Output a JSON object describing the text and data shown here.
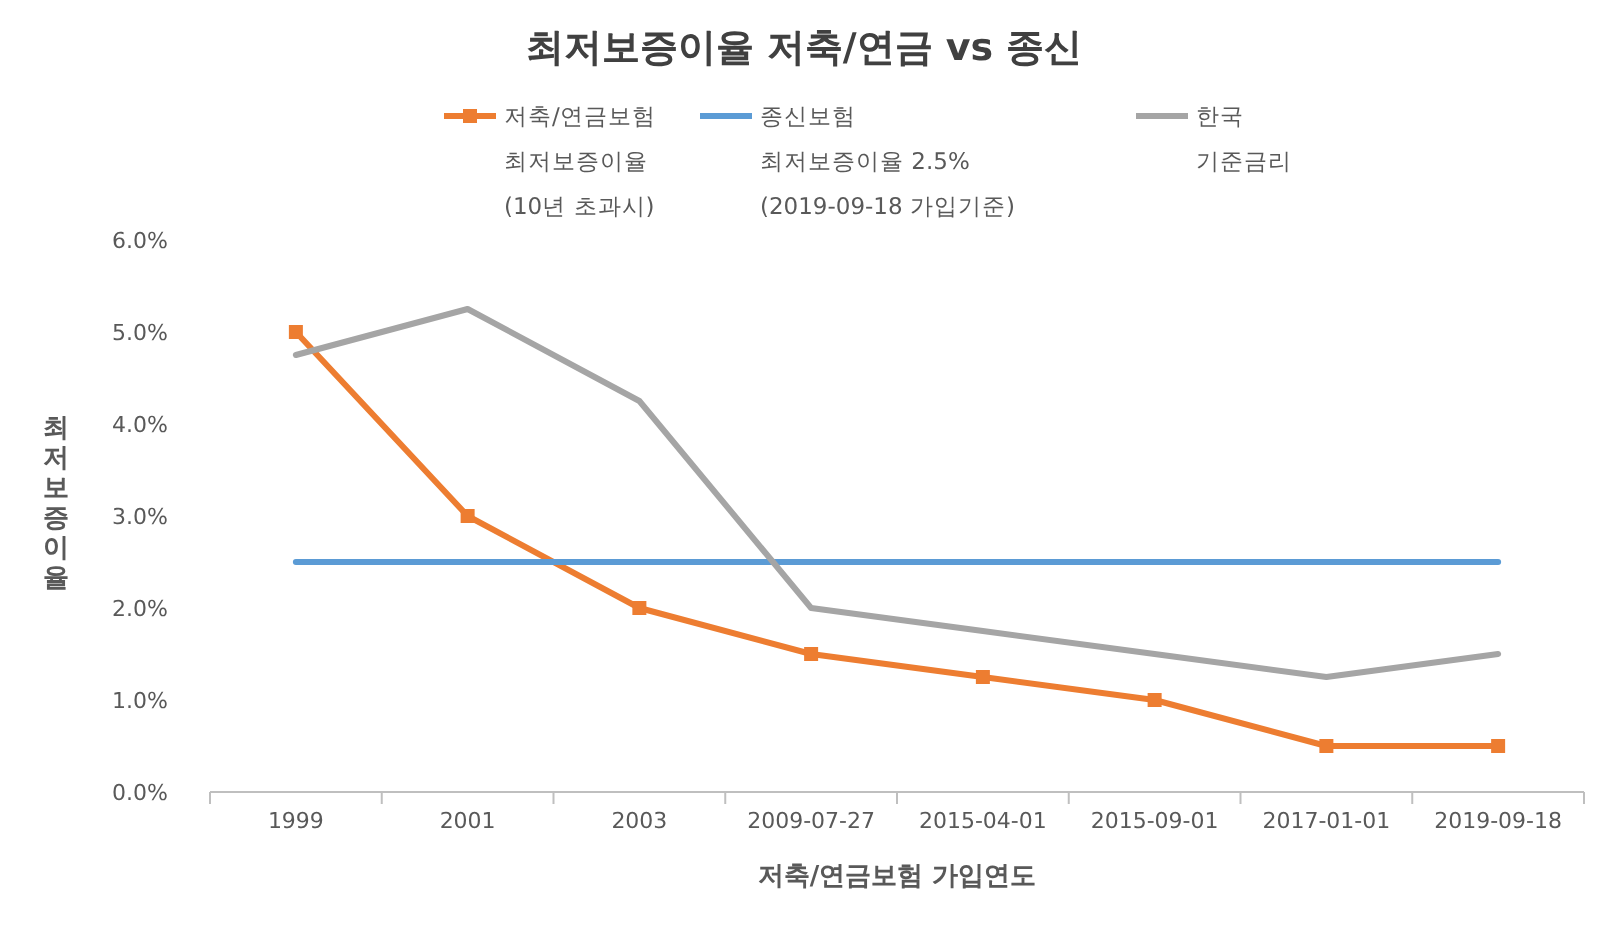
{
  "chart_data": {
    "type": "line",
    "title": "최저보증이율 저축/연금 vs 종신",
    "xlabel": "저축/연금보험 가입연도",
    "ylabel": "최저보증이율",
    "categories": [
      "1999",
      "2001",
      "2003",
      "2009-07-27",
      "2015-04-01",
      "2015-09-01",
      "2017-01-01",
      "2019-09-18"
    ],
    "series": [
      {
        "name": "저축/연금보험\n최저보증이율\n(10년 초과시)",
        "color": "#ed7d31",
        "marker": "square",
        "values": [
          5.0,
          3.0,
          2.0,
          1.5,
          1.25,
          1.0,
          0.5,
          0.5
        ]
      },
      {
        "name": "종신보험\n최저보증이율 2.5%\n(2019-09-18 가입기준)",
        "color": "#5b9bd5",
        "marker": "none",
        "values": [
          2.5,
          2.5,
          2.5,
          2.5,
          2.5,
          2.5,
          2.5,
          2.5
        ]
      },
      {
        "name": "한국\n기준금리",
        "color": "#a5a5a5",
        "marker": "none",
        "values": [
          4.75,
          5.25,
          4.25,
          2.0,
          1.75,
          1.5,
          1.25,
          1.5
        ]
      }
    ],
    "ylim": [
      0,
      6
    ],
    "yticks": [
      {
        "value": 0,
        "label": "0.0%"
      },
      {
        "value": 1,
        "label": "1.0%"
      },
      {
        "value": 2,
        "label": "2.0%"
      },
      {
        "value": 3,
        "label": "3.0%"
      },
      {
        "value": 4,
        "label": "4.0%"
      },
      {
        "value": 5,
        "label": "5.0%"
      },
      {
        "value": 6,
        "label": "6.0%"
      }
    ],
    "legend": "top",
    "grid": false
  }
}
